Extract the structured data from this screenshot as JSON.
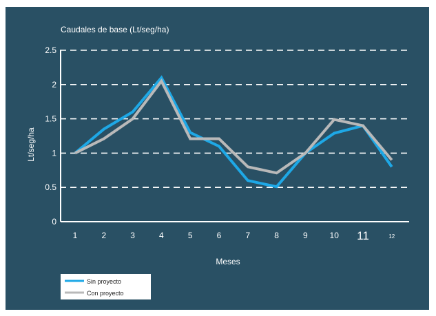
{
  "colors": {
    "background": "#295064",
    "axis": "#ffffff",
    "grid": "#ffffff",
    "legend_box": "#ffffff"
  },
  "chart_data": {
    "type": "line",
    "title": "Caudales de base  (Lt/seg/ha)",
    "xlabel": "Meses",
    "ylabel": "Lt/seg/ha",
    "categories": [
      "1",
      "2",
      "3",
      "4",
      "5",
      "6",
      "7",
      "8",
      "9",
      "10",
      "11",
      "12"
    ],
    "x": [
      1,
      2,
      3,
      4,
      5,
      6,
      7,
      8,
      9,
      10,
      11,
      12
    ],
    "ylim": [
      0,
      2.5
    ],
    "yticks": [
      "0",
      "0.5",
      "1",
      "1.5",
      "2",
      "2.5"
    ],
    "grid": "horizontal dashed",
    "legend": "bottom-left",
    "series": [
      {
        "name": "Sin proyecto",
        "color": "#1ea8e6",
        "values": [
          1.0,
          1.35,
          1.6,
          2.1,
          1.3,
          1.1,
          0.6,
          0.51,
          1.0,
          1.29,
          1.4,
          0.8
        ]
      },
      {
        "name": "Con proyecto",
        "color": "#b9b9b9",
        "values": [
          1.0,
          1.21,
          1.5,
          2.05,
          1.21,
          1.21,
          0.8,
          0.71,
          1.0,
          1.49,
          1.4,
          0.9
        ]
      }
    ]
  }
}
